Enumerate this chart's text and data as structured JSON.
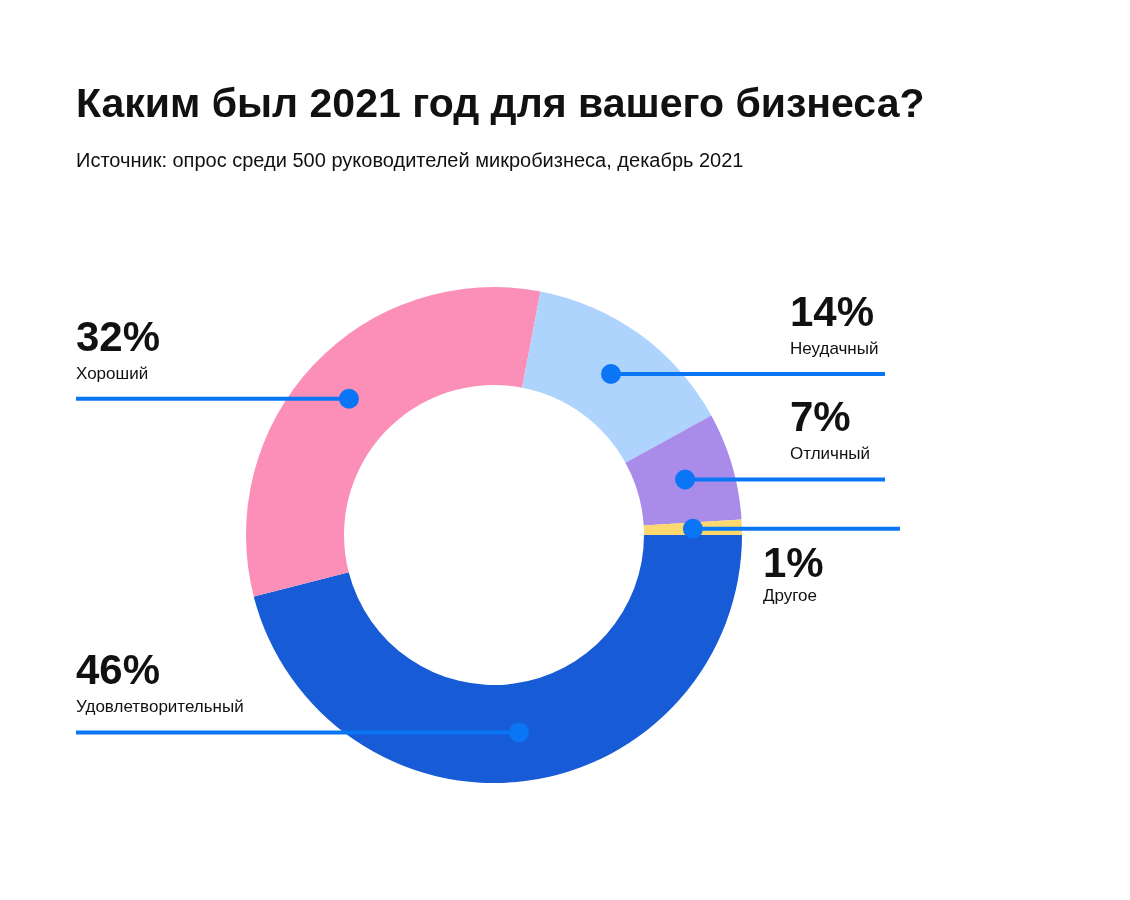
{
  "chart_data": {
    "type": "donut",
    "title": "Каким был 2021 год для вашего бизнеса?",
    "subtitle": "Источник: опрос среди 500 руководителей микробизнеса, декабрь 2021",
    "categories": [
      "Удовлетворительный",
      "Хороший",
      "Неудачный",
      "Отличный",
      "Другое"
    ],
    "values": [
      46,
      32,
      14,
      7,
      1
    ],
    "colors": [
      "#175bd6",
      "#fb8fb8",
      "#aed3fd",
      "#a98be9",
      "#fcd86e"
    ],
    "value_labels": [
      "46%",
      "32%",
      "14%",
      "7%",
      "1%"
    ]
  }
}
